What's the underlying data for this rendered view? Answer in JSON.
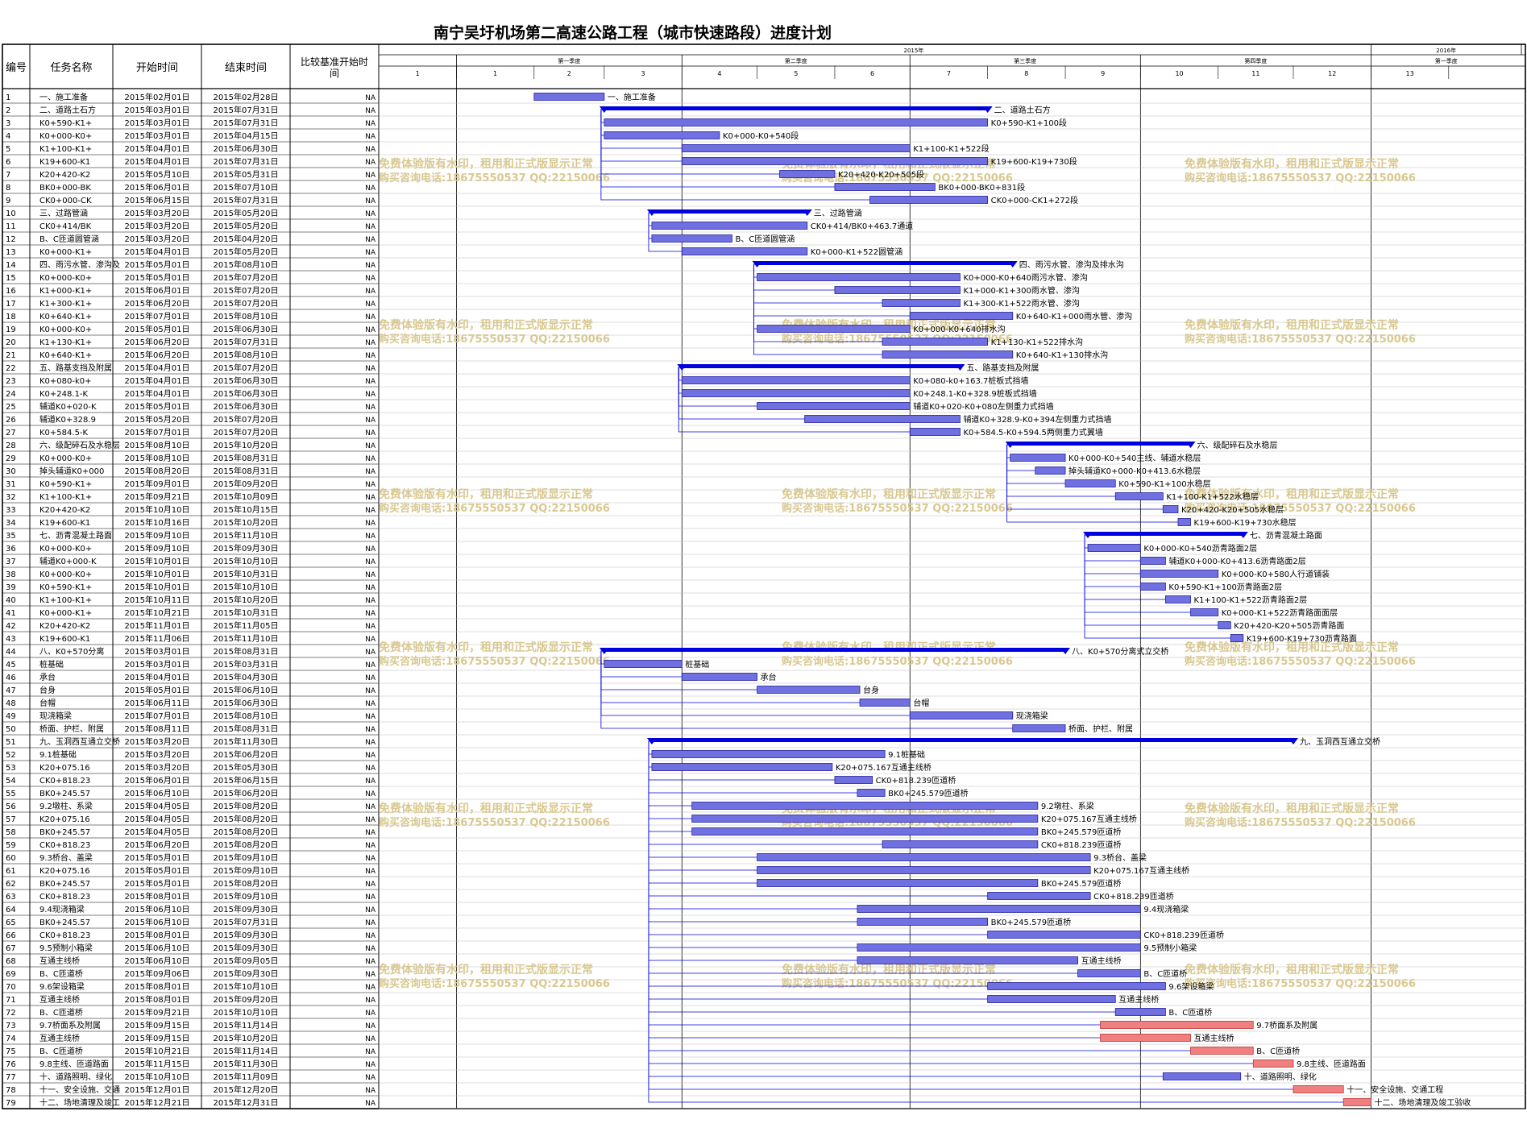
{
  "title": "南宁吴圩机场第二高速公路工程（城市快速路段）进度计划",
  "columns": {
    "id": "编号",
    "name": "任务名称",
    "start": "开始时间",
    "end": "结束时间",
    "baseline": "比较基准开始时间"
  },
  "baseline_value": "NA",
  "timeline": {
    "years": [
      {
        "label": "2015年",
        "start": "2015-01-01",
        "end": "2016-01-01"
      },
      {
        "label": "2016年",
        "start": "2016-01-01",
        "end": "2016-03-01"
      }
    ],
    "quarters": [
      {
        "label": "第一季度",
        "start": "2015-01-01",
        "end": "2015-04-01"
      },
      {
        "label": "第二季度",
        "start": "2015-04-01",
        "end": "2015-07-01"
      },
      {
        "label": "第三季度",
        "start": "2015-07-01",
        "end": "2015-10-01"
      },
      {
        "label": "第四季度",
        "start": "2015-10-01",
        "end": "2016-01-01"
      },
      {
        "label": "第一季度",
        "start": "2016-01-01",
        "end": "2016-03-01"
      }
    ],
    "months": [
      "1",
      "1",
      "2",
      "3",
      "4",
      "5",
      "6",
      "7",
      "8",
      "9",
      "10",
      "11",
      "12",
      "13"
    ]
  },
  "chart_data": {
    "type": "gantt",
    "title": "南宁吴圩机场第二高速公路工程（城市快速路段）进度计划",
    "x_range": [
      "2014-12-01",
      "2016-03-01"
    ],
    "tasks": [
      {
        "id": 1,
        "name": "一、施工准备",
        "start": "2015年02月01日",
        "end": "2015年02月28日",
        "kind": "normal",
        "label": "一、施工准备"
      },
      {
        "id": 2,
        "name": "二、道路土石方",
        "start": "2015年03月01日",
        "end": "2015年07月31日",
        "kind": "summary",
        "label": "二、道路土石方"
      },
      {
        "id": 3,
        "name": "K0+590-K1+100段",
        "start": "2015年03月01日",
        "end": "2015年07月31日",
        "kind": "normal",
        "label": "K0+590-K1+100段"
      },
      {
        "id": 4,
        "name": "K0+000-K0+540段",
        "start": "2015年03月01日",
        "end": "2015年04月15日",
        "kind": "normal",
        "label": "K0+000-K0+540段"
      },
      {
        "id": 5,
        "name": "K1+100-K1+522段",
        "start": "2015年04月01日",
        "end": "2015年06月30日",
        "kind": "normal",
        "label": "K1+100-K1+522段"
      },
      {
        "id": 6,
        "name": "K19+600-K19+730段",
        "start": "2015年04月01日",
        "end": "2015年07月31日",
        "kind": "normal",
        "label": "K19+600-K19+730段"
      },
      {
        "id": 7,
        "name": "K20+420-K20+505段",
        "start": "2015年05月10日",
        "end": "2015年05月31日",
        "kind": "normal",
        "label": "K20+420-K20+505段"
      },
      {
        "id": 8,
        "name": "BK0+000-BK0+831段",
        "start": "2015年06月01日",
        "end": "2015年07月10日",
        "kind": "normal",
        "label": "BK0+000-BK0+831段"
      },
      {
        "id": 9,
        "name": "CK0+000-CK1+272段",
        "start": "2015年06月15日",
        "end": "2015年07月31日",
        "kind": "normal",
        "label": "CK0+000-CK1+272段"
      },
      {
        "id": 10,
        "name": "三、过路管涵",
        "start": "2015年03月20日",
        "end": "2015年05月20日",
        "kind": "summary",
        "label": "三、过路管涵"
      },
      {
        "id": 11,
        "name": "CK0+414/BK0+463.7通道",
        "start": "2015年03月20日",
        "end": "2015年05月20日",
        "kind": "normal",
        "label": "CK0+414/BK0+463.7通道"
      },
      {
        "id": 12,
        "name": "B、C匝道圆管涵",
        "start": "2015年03月20日",
        "end": "2015年04月20日",
        "kind": "normal",
        "label": "B、C匝道圆管涵"
      },
      {
        "id": 13,
        "name": "K0+000-K1+522圆管涵",
        "start": "2015年04月01日",
        "end": "2015年05月20日",
        "kind": "normal",
        "label": "K0+000-K1+522圆管涵"
      },
      {
        "id": 14,
        "name": "四、雨污水管、渗沟及排水沟",
        "start": "2015年05月01日",
        "end": "2015年08月10日",
        "kind": "summary",
        "label": "四、雨污水管、渗沟及排水沟"
      },
      {
        "id": 15,
        "name": "K0+000-K0+640雨污水管、渗沟",
        "start": "2015年05月01日",
        "end": "2015年07月20日",
        "kind": "normal",
        "label": "K0+000-K0+640雨污水管、渗沟"
      },
      {
        "id": 16,
        "name": "K1+000-K1+300雨水管、渗沟",
        "start": "2015年06月01日",
        "end": "2015年07月20日",
        "kind": "normal",
        "label": "K1+000-K1+300雨水管、渗沟"
      },
      {
        "id": 17,
        "name": "K1+300-K1+522雨水管、渗沟",
        "start": "2015年06月20日",
        "end": "2015年07月20日",
        "kind": "normal",
        "label": "K1+300-K1+522雨水管、渗沟"
      },
      {
        "id": 18,
        "name": "K0+640-K1+000雨水管、渗沟",
        "start": "2015年07月01日",
        "end": "2015年08月10日",
        "kind": "normal",
        "label": "K0+640-K1+000雨水管、渗沟"
      },
      {
        "id": 19,
        "name": "K0+000-K0+640排水沟",
        "start": "2015年05月01日",
        "end": "2015年06月30日",
        "kind": "normal",
        "label": "K0+000-K0+640排水沟"
      },
      {
        "id": 20,
        "name": "K1+130-K1+522排水沟",
        "start": "2015年06月20日",
        "end": "2015年07月31日",
        "kind": "normal",
        "label": "K1+130-K1+522排水沟"
      },
      {
        "id": 21,
        "name": "K0+640-K1+130排水沟",
        "start": "2015年06月20日",
        "end": "2015年08月10日",
        "kind": "normal",
        "label": "K0+640-K1+130排水沟"
      },
      {
        "id": 22,
        "name": "五、路基支挡及附属",
        "start": "2015年04月01日",
        "end": "2015年07月20日",
        "kind": "summary",
        "label": "五、路基支挡及附属"
      },
      {
        "id": 23,
        "name": "K0+080-k0+163.7桩板式挡墙",
        "start": "2015年04月01日",
        "end": "2015年06月30日",
        "kind": "normal",
        "label": "K0+080-k0+163.7桩板式挡墙"
      },
      {
        "id": 24,
        "name": "K0+248.1-K0+328.9桩板式挡墙",
        "start": "2015年04月01日",
        "end": "2015年06月30日",
        "kind": "normal",
        "label": "K0+248.1-K0+328.9桩板式挡墙"
      },
      {
        "id": 25,
        "name": "辅道K0+020-K0+080左侧重力式挡墙",
        "start": "2015年05月01日",
        "end": "2015年06月30日",
        "kind": "normal",
        "label": "辅道K0+020-K0+080左侧重力式挡墙"
      },
      {
        "id": 26,
        "name": "辅道K0+328.9-K0+394左侧重力式挡墙",
        "start": "2015年05月20日",
        "end": "2015年07月20日",
        "kind": "normal",
        "label": "辅道K0+328.9-K0+394左侧重力式挡墙"
      },
      {
        "id": 27,
        "name": "K0+584.5-K0+594.5两侧重力式翼墙",
        "start": "2015年07月01日",
        "end": "2015年07月20日",
        "kind": "normal",
        "label": "K0+584.5-K0+594.5两侧重力式翼墙"
      },
      {
        "id": 28,
        "name": "六、级配碎石及水稳层",
        "start": "2015年08月10日",
        "end": "2015年10月20日",
        "kind": "summary",
        "label": "六、级配碎石及水稳层"
      },
      {
        "id": 29,
        "name": "K0+000-K0+540主线、辅道水稳层",
        "start": "2015年08月10日",
        "end": "2015年08月31日",
        "kind": "normal",
        "label": "K0+000-K0+540主线、辅道水稳层"
      },
      {
        "id": 30,
        "name": "掉头辅道K0+000-K0+413.6水稳层",
        "start": "2015年08月20日",
        "end": "2015年08月31日",
        "kind": "normal",
        "label": "掉头辅道K0+000-K0+413.6水稳层"
      },
      {
        "id": 31,
        "name": "K0+590-K1+100水稳层",
        "start": "2015年09月01日",
        "end": "2015年09月20日",
        "kind": "normal",
        "label": "K0+590-K1+100水稳层"
      },
      {
        "id": 32,
        "name": "K1+100-K1+522水稳层",
        "start": "2015年09月21日",
        "end": "2015年10月09日",
        "kind": "normal",
        "label": "K1+100-K1+522水稳层"
      },
      {
        "id": 33,
        "name": "K20+420-K20+505水稳层",
        "start": "2015年10月10日",
        "end": "2015年10月15日",
        "kind": "normal",
        "label": "K20+420-K20+505水稳层"
      },
      {
        "id": 34,
        "name": "K19+600-K19+730水稳层",
        "start": "2015年10月16日",
        "end": "2015年10月20日",
        "kind": "normal",
        "label": "K19+600-K19+730水稳层"
      },
      {
        "id": 35,
        "name": "七、沥青混凝土路面",
        "start": "2015年09月10日",
        "end": "2015年11月10日",
        "kind": "summary",
        "label": "七、沥青混凝土路面"
      },
      {
        "id": 36,
        "name": "K0+000-K0+540沥青路面2层",
        "start": "2015年09月10日",
        "end": "2015年09月30日",
        "kind": "normal",
        "label": "K0+000-K0+540沥青路面2层"
      },
      {
        "id": 37,
        "name": "辅道K0+000-K0+413.6沥青路面2层",
        "start": "2015年10月01日",
        "end": "2015年10月10日",
        "kind": "normal",
        "label": "辅道K0+000-K0+413.6沥青路面2层"
      },
      {
        "id": 38,
        "name": "K0+000-K0+580人行道铺装",
        "start": "2015年10月01日",
        "end": "2015年10月31日",
        "kind": "normal",
        "label": "K0+000-K0+580人行道铺装"
      },
      {
        "id": 39,
        "name": "K0+590-K1+100沥青路面2层",
        "start": "2015年10月01日",
        "end": "2015年10月10日",
        "kind": "normal",
        "label": "K0+590-K1+100沥青路面2层"
      },
      {
        "id": 40,
        "name": "K1+100-K1+522沥青路面2层",
        "start": "2015年10月11日",
        "end": "2015年10月20日",
        "kind": "normal",
        "label": "K1+100-K1+522沥青路面2层"
      },
      {
        "id": 41,
        "name": "K0+000-K1+522沥青路面面层",
        "start": "2015年10月21日",
        "end": "2015年10月31日",
        "kind": "normal",
        "label": "K0+000-K1+522沥青路面面层"
      },
      {
        "id": 42,
        "name": "K20+420-K20+505沥青路面",
        "start": "2015年11月01日",
        "end": "2015年11月05日",
        "kind": "normal",
        "label": "K20+420-K20+505沥青路面"
      },
      {
        "id": 43,
        "name": "K19+600-K19+730沥青路面",
        "start": "2015年11月06日",
        "end": "2015年11月10日",
        "kind": "normal",
        "label": "K19+600-K19+730沥青路面"
      },
      {
        "id": 44,
        "name": "八、K0+570分离式立交桥",
        "start": "2015年03月01日",
        "end": "2015年08月31日",
        "kind": "summary",
        "label": "八、K0+570分离式立交桥"
      },
      {
        "id": 45,
        "name": "桩基础",
        "start": "2015年03月01日",
        "end": "2015年03月31日",
        "kind": "normal",
        "label": "桩基础"
      },
      {
        "id": 46,
        "name": "承台",
        "start": "2015年04月01日",
        "end": "2015年04月30日",
        "kind": "normal",
        "label": "承台"
      },
      {
        "id": 47,
        "name": "台身",
        "start": "2015年05月01日",
        "end": "2015年06月10日",
        "kind": "normal",
        "label": "台身"
      },
      {
        "id": 48,
        "name": "台帽",
        "start": "2015年06月11日",
        "end": "2015年06月30日",
        "kind": "normal",
        "label": "台帽"
      },
      {
        "id": 49,
        "name": "现浇箱梁",
        "start": "2015年07月01日",
        "end": "2015年08月10日",
        "kind": "normal",
        "label": "现浇箱梁"
      },
      {
        "id": 50,
        "name": "桥面、护栏、附属",
        "start": "2015年08月11日",
        "end": "2015年08月31日",
        "kind": "normal",
        "label": "桥面、护栏、附属"
      },
      {
        "id": 51,
        "name": "九、玉洞西互通立交桥",
        "start": "2015年03月20日",
        "end": "2015年11月30日",
        "kind": "summary",
        "label": "九、玉洞西互通立交桥"
      },
      {
        "id": 52,
        "name": "9.1桩基础",
        "start": "2015年03月20日",
        "end": "2015年06月20日",
        "kind": "normal",
        "label": "9.1桩基础"
      },
      {
        "id": 53,
        "name": "K20+075.167互通主线桥",
        "start": "2015年03月20日",
        "end": "2015年05月30日",
        "kind": "normal",
        "label": "K20+075.167互通主线桥"
      },
      {
        "id": 54,
        "name": "CK0+818.239匝道桥",
        "start": "2015年06月01日",
        "end": "2015年06月15日",
        "kind": "normal",
        "label": "CK0+818.239匝道桥"
      },
      {
        "id": 55,
        "name": "BK0+245.579匝道桥",
        "start": "2015年06月10日",
        "end": "2015年06月20日",
        "kind": "normal",
        "label": "BK0+245.579匝道桥"
      },
      {
        "id": 56,
        "name": "9.2墩柱、系梁",
        "start": "2015年04月05日",
        "end": "2015年08月20日",
        "kind": "normal",
        "label": "9.2墩柱、系梁"
      },
      {
        "id": 57,
        "name": "K20+075.167互通主线桥",
        "start": "2015年04月05日",
        "end": "2015年08月20日",
        "kind": "normal",
        "label": "K20+075.167互通主线桥"
      },
      {
        "id": 58,
        "name": "BK0+245.579匝道桥",
        "start": "2015年04月05日",
        "end": "2015年08月20日",
        "kind": "normal",
        "label": "BK0+245.579匝道桥"
      },
      {
        "id": 59,
        "name": "CK0+818.239匝道桥",
        "start": "2015年06月20日",
        "end": "2015年08月20日",
        "kind": "normal",
        "label": "CK0+818.239匝道桥"
      },
      {
        "id": 60,
        "name": "9.3桥台、盖梁",
        "start": "2015年05月01日",
        "end": "2015年09月10日",
        "kind": "normal",
        "label": "9.3桥台、盖梁"
      },
      {
        "id": 61,
        "name": "K20+075.167互通主线桥",
        "start": "2015年05月01日",
        "end": "2015年09月10日",
        "kind": "normal",
        "label": "K20+075.167互通主线桥"
      },
      {
        "id": 62,
        "name": "BK0+245.579匝道桥",
        "start": "2015年05月01日",
        "end": "2015年08月20日",
        "kind": "normal",
        "label": "BK0+245.579匝道桥"
      },
      {
        "id": 63,
        "name": "CK0+818.239匝道桥",
        "start": "2015年08月01日",
        "end": "2015年09月10日",
        "kind": "normal",
        "label": "CK0+818.239匝道桥"
      },
      {
        "id": 64,
        "name": "9.4现浇箱梁",
        "start": "2015年06月10日",
        "end": "2015年09月30日",
        "kind": "normal",
        "label": "9.4现浇箱梁"
      },
      {
        "id": 65,
        "name": "BK0+245.579匝道桥",
        "start": "2015年06月10日",
        "end": "2015年07月31日",
        "kind": "normal",
        "label": "BK0+245.579匝道桥"
      },
      {
        "id": 66,
        "name": "CK0+818.239匝道桥",
        "start": "2015年08月01日",
        "end": "2015年09月30日",
        "kind": "normal",
        "label": "CK0+818.239匝道桥"
      },
      {
        "id": 67,
        "name": "9.5预制小箱梁",
        "start": "2015年06月10日",
        "end": "2015年09月30日",
        "kind": "normal",
        "label": "9.5预制小箱梁"
      },
      {
        "id": 68,
        "name": "互通主线桥",
        "start": "2015年06月10日",
        "end": "2015年09月05日",
        "kind": "normal",
        "label": "互通主线桥"
      },
      {
        "id": 69,
        "name": "B、C匝道桥",
        "start": "2015年09月06日",
        "end": "2015年09月30日",
        "kind": "normal",
        "label": "B、C匝道桥"
      },
      {
        "id": 70,
        "name": "9.6架设箱梁",
        "start": "2015年08月01日",
        "end": "2015年10月10日",
        "kind": "normal",
        "label": "9.6架设箱梁"
      },
      {
        "id": 71,
        "name": "互通主线桥",
        "start": "2015年08月01日",
        "end": "2015年09月20日",
        "kind": "normal",
        "label": "互通主线桥"
      },
      {
        "id": 72,
        "name": "B、C匝道桥",
        "start": "2015年09月21日",
        "end": "2015年10月10日",
        "kind": "normal",
        "label": "B、C匝道桥"
      },
      {
        "id": 73,
        "name": "9.7桥面系及附属",
        "start": "2015年09月15日",
        "end": "2015年11月14日",
        "kind": "critical",
        "label": "9.7桥面系及附属"
      },
      {
        "id": 74,
        "name": "互通主线桥",
        "start": "2015年09月15日",
        "end": "2015年10月20日",
        "kind": "critical",
        "label": "互通主线桥"
      },
      {
        "id": 75,
        "name": "B、C匝道桥",
        "start": "2015年10月21日",
        "end": "2015年11月14日",
        "kind": "critical",
        "label": "B、C匝道桥"
      },
      {
        "id": 76,
        "name": "9.8主线、匝道路面",
        "start": "2015年11月15日",
        "end": "2015年11月30日",
        "kind": "critical",
        "label": "9.8主线、匝道路面"
      },
      {
        "id": 77,
        "name": "十、道路照明、绿化",
        "start": "2015年10月10日",
        "end": "2015年11月09日",
        "kind": "normal",
        "label": "十、道路照明、绿化"
      },
      {
        "id": 78,
        "name": "十一、安全设施、交通工程",
        "start": "2015年12月01日",
        "end": "2015年12月20日",
        "kind": "critical",
        "label": "十一、安全设施、交通工程"
      },
      {
        "id": 79,
        "name": "十二、场地清理及竣工验收",
        "start": "2015年12月21日",
        "end": "2015年12月31日",
        "kind": "critical",
        "label": "十二、场地清理及竣工验收"
      }
    ]
  },
  "watermark_lines": [
    "免费体验版有水印，租用和正式版显示正常",
    "购买咨询电话:18675550537 QQ:22150066"
  ],
  "colors": {
    "normal_bar": "#7070e0",
    "critical_bar": "#f08080",
    "summary_bar": "#0000e0",
    "link": "#0000e0",
    "watermark": "#d8c890"
  }
}
